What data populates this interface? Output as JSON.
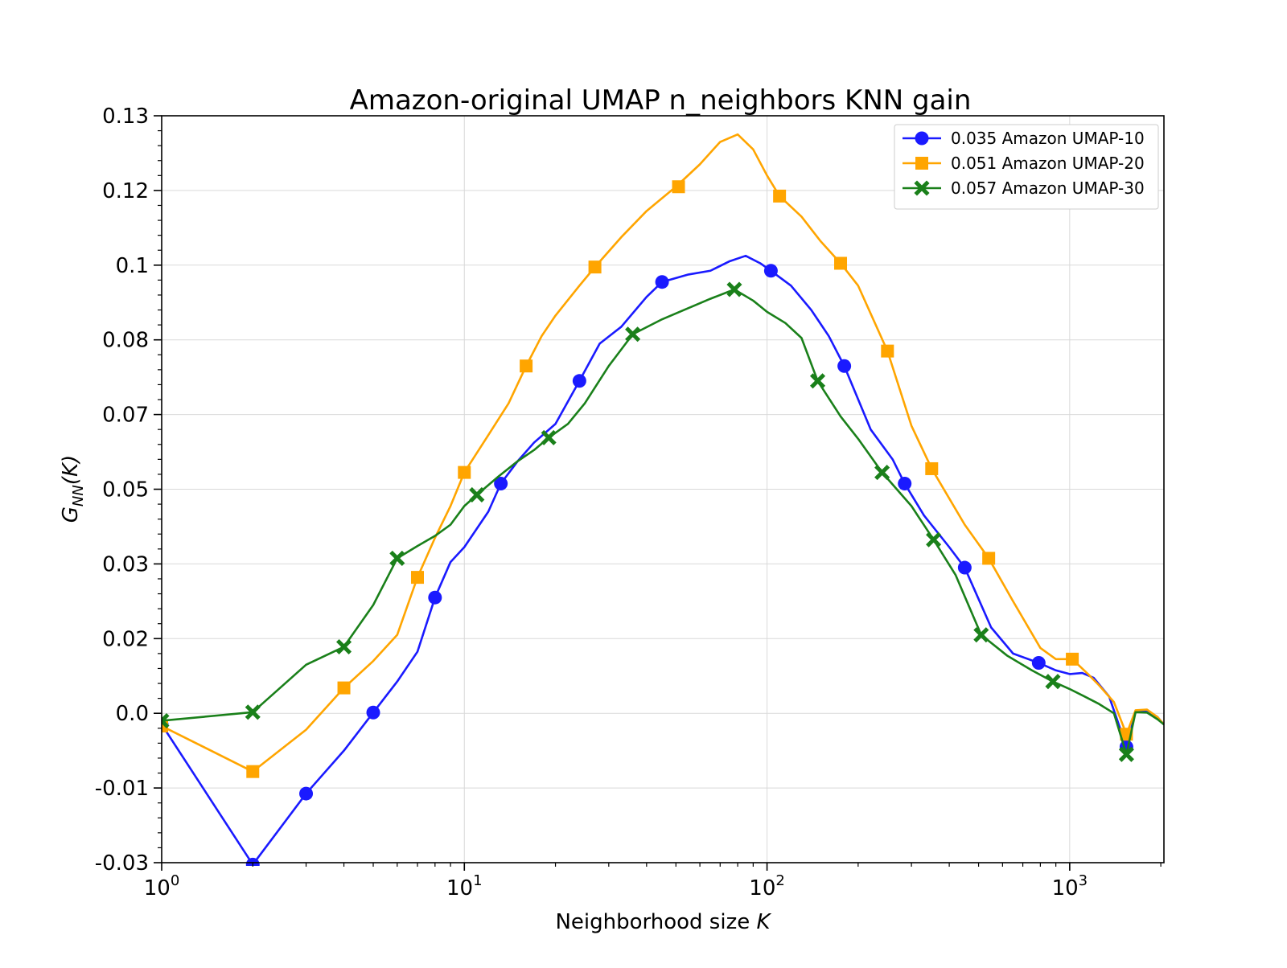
{
  "chart_data": {
    "type": "line",
    "title": "Amazon-original UMAP n_neighbors KNN gain",
    "xlabel": "Neighborhood size K",
    "xlabel_parts": {
      "text": "Neighborhood size ",
      "var": "K"
    },
    "ylabel": "G_NN(K)",
    "ylabel_parts": {
      "base": "G",
      "sub": "NN",
      "arg": "(K)"
    },
    "x_scale": "log",
    "xlim": [
      1,
      2048
    ],
    "ylim": [
      -0.03,
      0.13
    ],
    "x_ticks": [
      {
        "value": 1,
        "base": "10",
        "exp": "0"
      },
      {
        "value": 10,
        "base": "10",
        "exp": "1"
      },
      {
        "value": 100,
        "base": "10",
        "exp": "2"
      },
      {
        "value": 1000,
        "base": "10",
        "exp": "3"
      }
    ],
    "y_ticks": [
      {
        "value": -0.03,
        "label": "-0.03"
      },
      {
        "value": -0.01,
        "label": "-0.01"
      },
      {
        "value": 0.0,
        "label": "0.0"
      },
      {
        "value": 0.02,
        "label": "0.02"
      },
      {
        "value": 0.03,
        "label": "0.03"
      },
      {
        "value": 0.05,
        "label": "0.05"
      },
      {
        "value": 0.07,
        "label": "0.07"
      },
      {
        "value": 0.08,
        "label": "0.08"
      },
      {
        "value": 0.1,
        "label": "0.1"
      },
      {
        "value": 0.12,
        "label": "0.12"
      },
      {
        "value": 0.13,
        "label": "0.13"
      }
    ],
    "grid": true,
    "legend_position": "top-right",
    "series": [
      {
        "name": "0.035 Amazon UMAP-10",
        "color": "#1a1aff",
        "marker": "circle",
        "x": [
          1,
          2,
          3,
          4,
          5,
          6,
          7,
          8,
          9,
          10,
          12,
          13.2,
          15,
          17,
          20,
          24,
          28,
          33,
          40,
          45,
          55,
          65,
          75,
          85,
          95,
          103,
          120,
          140,
          160,
          180,
          220,
          260,
          285,
          330,
          400,
          450,
          550,
          650,
          790,
          900,
          1000,
          1100,
          1200,
          1350,
          1540,
          1650,
          1800,
          1950,
          2048
        ],
        "y": [
          -0.0015,
          -0.0305,
          -0.0115,
          -0.005,
          0.0002,
          0.0085,
          0.0165,
          0.0255,
          0.0305,
          0.0345,
          0.044,
          0.0515,
          0.0575,
          0.0625,
          0.0675,
          0.0745,
          0.0795,
          0.0835,
          0.0915,
          0.0955,
          0.0975,
          0.0985,
          0.101,
          0.1025,
          0.1005,
          0.0985,
          0.0945,
          0.088,
          0.081,
          0.0765,
          0.066,
          0.058,
          0.0515,
          0.043,
          0.0345,
          0.0295,
          0.0215,
          0.016,
          0.0135,
          0.0115,
          0.0105,
          0.0108,
          0.0095,
          0.0045,
          -0.0045,
          0.0003,
          0.0008,
          -0.0005,
          -0.0015
        ],
        "marker_x": [
          1,
          2,
          3,
          5,
          8,
          13.2,
          24,
          45,
          103,
          180,
          285,
          450,
          790,
          1540
        ],
        "marker_y": [
          -0.0015,
          -0.0305,
          -0.0115,
          0.0002,
          0.0255,
          0.0515,
          0.0745,
          0.0955,
          0.0985,
          0.0765,
          0.0515,
          0.0295,
          0.0135,
          -0.0045
        ]
      },
      {
        "name": "0.051 Amazon UMAP-20",
        "color": "#ffa500",
        "marker": "square",
        "x": [
          1,
          2,
          3,
          4,
          5,
          6,
          7,
          8,
          9,
          10,
          12,
          14,
          16,
          18,
          20,
          24,
          27,
          33,
          40,
          50,
          60,
          70,
          80,
          90,
          100,
          110,
          130,
          150,
          175,
          200,
          250,
          300,
          350,
          450,
          540,
          650,
          800,
          900,
          1020,
          1150,
          1250,
          1400,
          1540,
          1650,
          1800,
          1950,
          2048
        ],
        "y": [
          -0.0017,
          -0.0078,
          -0.0022,
          0.0068,
          0.014,
          0.0205,
          0.0282,
          0.037,
          0.0455,
          0.0545,
          0.0645,
          0.0715,
          0.0765,
          0.081,
          0.0865,
          0.0945,
          0.0995,
          0.1075,
          0.1145,
          0.1205,
          0.1235,
          0.1265,
          0.1275,
          0.1255,
          0.122,
          0.1185,
          0.113,
          0.1065,
          0.1005,
          0.0945,
          0.0785,
          0.067,
          0.0555,
          0.0405,
          0.0315,
          0.025,
          0.0175,
          0.0145,
          0.0145,
          0.0105,
          0.0075,
          0.003,
          -0.0028,
          0.0008,
          0.001,
          -0.0005,
          -0.0015
        ],
        "marker_x": [
          1,
          2,
          4,
          7,
          10,
          16,
          27,
          51,
          110,
          175,
          250,
          350,
          540,
          1020,
          1540
        ],
        "marker_y": [
          -0.0017,
          -0.0078,
          0.0068,
          0.0282,
          0.0545,
          0.0765,
          0.0995,
          0.1205,
          0.1185,
          0.1005,
          0.0785,
          0.0555,
          0.0315,
          0.0145,
          -0.0028
        ]
      },
      {
        "name": "0.057 Amazon UMAP-30",
        "color": "#1a801a",
        "marker": "x",
        "x": [
          1,
          2,
          3,
          4,
          5,
          6,
          7,
          8,
          9,
          10,
          11,
          13,
          15,
          17,
          19,
          22,
          25,
          30,
          36,
          45,
          55,
          65,
          78,
          90,
          100,
          115,
          130,
          147,
          175,
          200,
          240,
          300,
          355,
          420,
          510,
          620,
          750,
          880,
          1000,
          1120,
          1250,
          1400,
          1540,
          1650,
          1800,
          1950,
          2048
        ],
        "y": [
          -0.001,
          0.0003,
          0.013,
          0.0178,
          0.0245,
          0.0315,
          0.0348,
          0.0375,
          0.0405,
          0.0455,
          0.0485,
          0.0535,
          0.0575,
          0.0605,
          0.0638,
          0.0675,
          0.0715,
          0.0765,
          0.0815,
          0.0855,
          0.0885,
          0.091,
          0.0935,
          0.0905,
          0.0875,
          0.0845,
          0.0805,
          0.0745,
          0.0695,
          0.0635,
          0.0545,
          0.0455,
          0.0365,
          0.0285,
          0.0205,
          0.0155,
          0.0115,
          0.0085,
          0.0065,
          0.0045,
          0.0025,
          0.0,
          -0.0055,
          0.0003,
          0.0002,
          -0.0008,
          -0.0015
        ],
        "marker_x": [
          1,
          2,
          4,
          6,
          11,
          19,
          36,
          78,
          147,
          240,
          355,
          510,
          880,
          1540
        ],
        "marker_y": [
          -0.001,
          0.0003,
          0.0178,
          0.0315,
          0.0485,
          0.0638,
          0.0815,
          0.0935,
          0.0745,
          0.0545,
          0.0365,
          0.0205,
          0.0085,
          -0.0055
        ]
      }
    ]
  }
}
